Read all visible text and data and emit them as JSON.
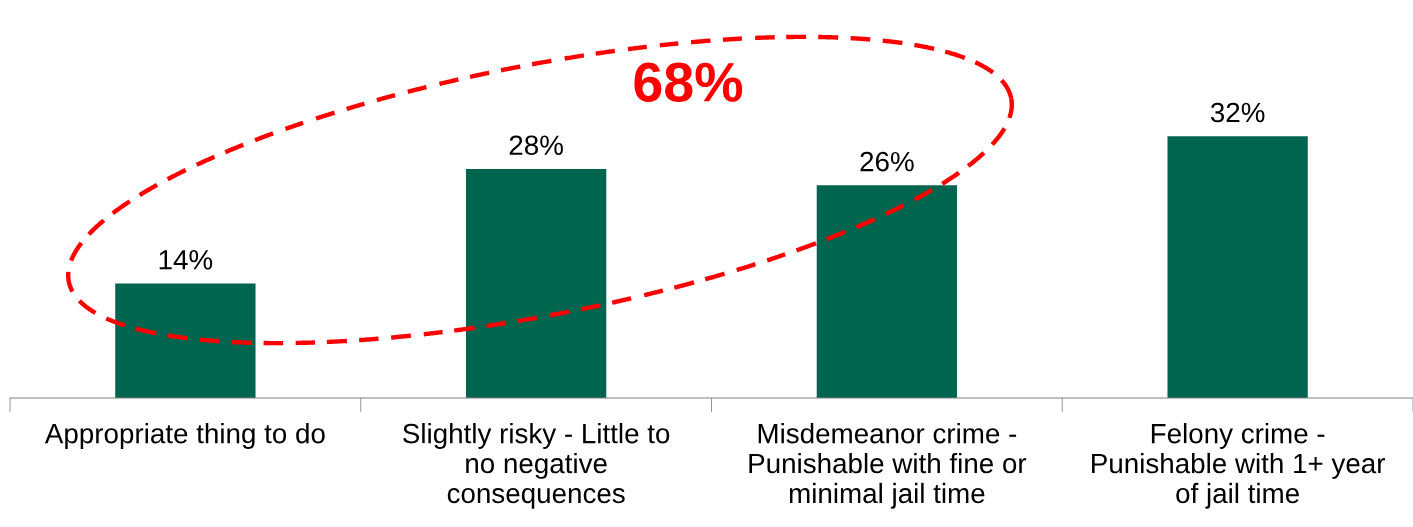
{
  "chart_data": {
    "type": "bar",
    "categories": [
      "Appropriate thing to do",
      "Slightly risky - Little to\nno negative\nconsequences",
      "Misdemeanor crime -\nPunishable with fine or\nminimal jail time",
      "Felony crime -\nPunishable with 1+ year\nof jail time"
    ],
    "values": [
      14,
      28,
      26,
      32
    ],
    "color": "#00654f",
    "data_labels": true,
    "value_labels": [
      "14%",
      "28%",
      "26%",
      "32%"
    ],
    "annotations": [
      "68%"
    ],
    "grid": false,
    "legend": false,
    "tick_labels": "x"
  }
}
